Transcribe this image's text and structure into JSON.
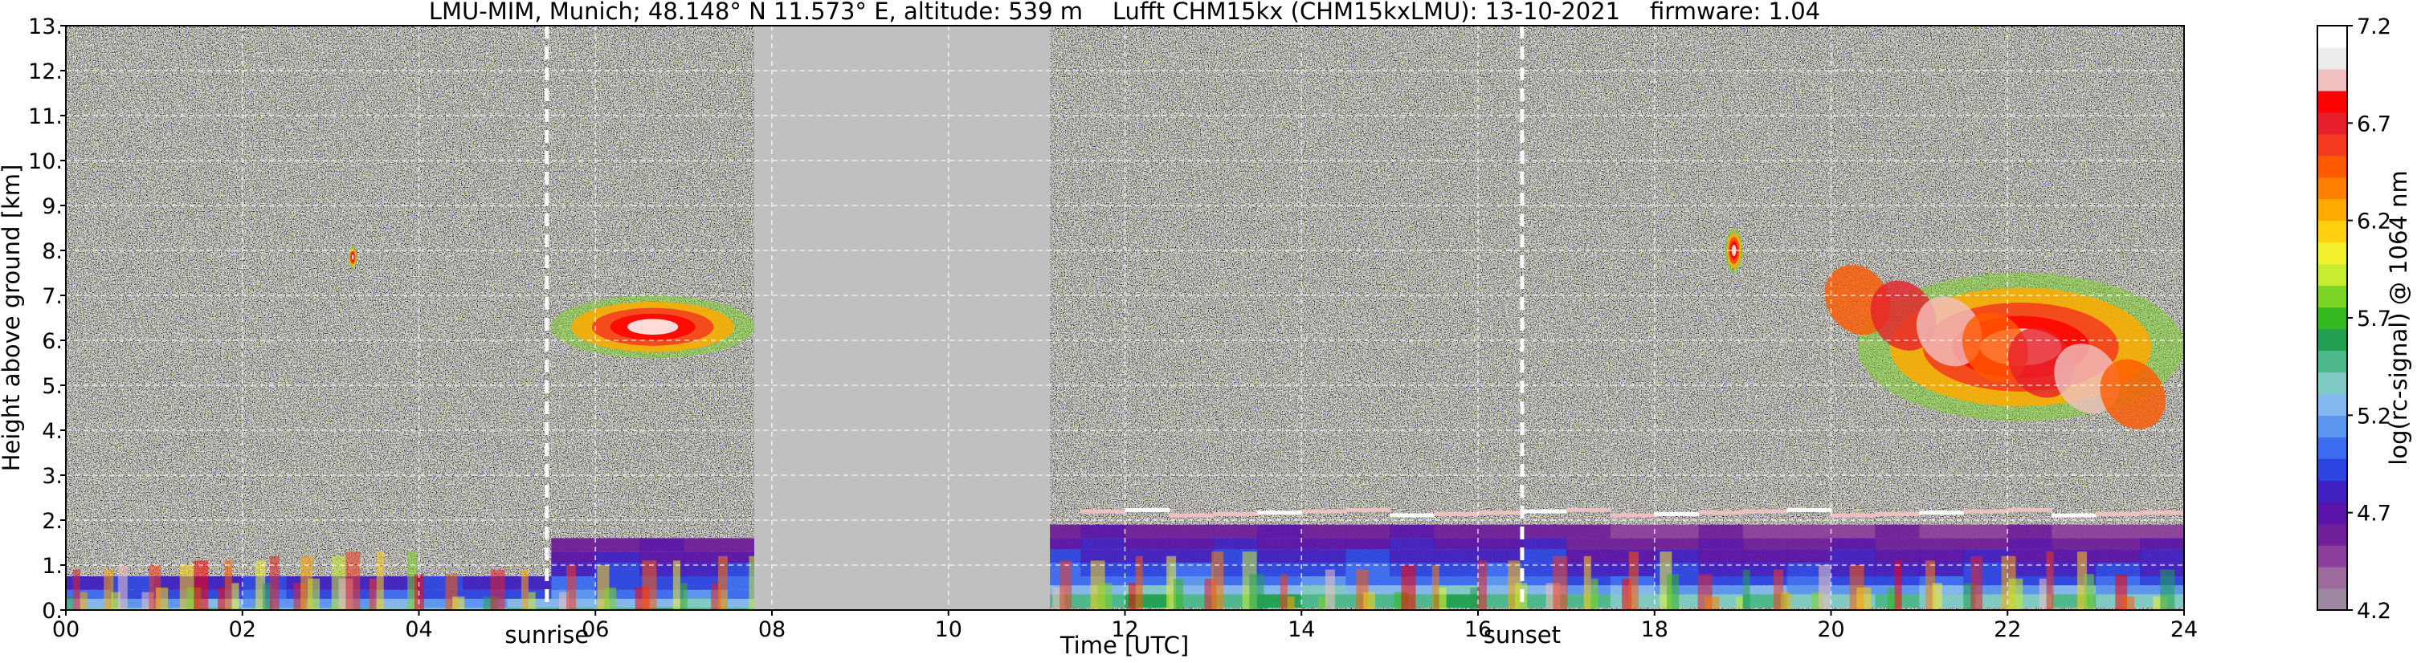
{
  "chart_data": {
    "type": "heatmap",
    "title": "LMU-MIM, Munich; 48.148° N 11.573° E, altitude: 539 m    Lufft CHM15kx (CHM15kxLMU): 13-10-2021    firmware: 1.04",
    "xlabel": "Time [UTC]",
    "ylabel": "Height above ground [km]",
    "xlim": [
      0,
      24
    ],
    "ylim": [
      0,
      13
    ],
    "x_ticks": [
      "00",
      "02",
      "04",
      "06",
      "08",
      "10",
      "12",
      "14",
      "16",
      "18",
      "20",
      "22",
      "24"
    ],
    "y_ticks": [
      "0.",
      "1.",
      "2.",
      "3.",
      "4.",
      "5.",
      "6.",
      "7.",
      "8.",
      "9.",
      "10.",
      "11.",
      "12.",
      "13."
    ],
    "grid": true,
    "background_colors": {
      "noise": "#1a1830",
      "no_data": "#c0c0c0"
    },
    "no_data_interval": [
      7.8,
      11.15
    ],
    "events": [
      {
        "label": "sunrise",
        "x": 5.45
      },
      {
        "label": "sunset",
        "x": 16.5
      }
    ],
    "colorbar": {
      "label": "log(rc-signal) @ 1064 nm",
      "range": [
        4.2,
        7.2
      ],
      "tick_labels": [
        "4.2",
        "4.7",
        "5.2",
        "5.7",
        "6.2",
        "6.7",
        "7.2"
      ],
      "colors": [
        "#9e8aa0",
        "#9c6a9c",
        "#8c3f9a",
        "#6f1f98",
        "#5a14a8",
        "#4020c0",
        "#2c44e0",
        "#3b6cf0",
        "#5a96f0",
        "#83b8ee",
        "#7fcac4",
        "#4cb88c",
        "#20a050",
        "#33b81e",
        "#7cd424",
        "#c8ec30",
        "#f4f230",
        "#ffd010",
        "#ffaa00",
        "#ff8000",
        "#ff5a00",
        "#f43a20",
        "#e6202a",
        "#ff0000",
        "#f0c0c0",
        "#ececec",
        "#ffffff"
      ]
    },
    "features": [
      {
        "name": "boundary layer aerosol",
        "x": [
          0,
          24
        ],
        "y": [
          0,
          2.2
        ]
      },
      {
        "name": "cloud ~8 km",
        "x": [
          3.2,
          3.3
        ],
        "y": [
          7.6,
          8.1
        ]
      },
      {
        "name": "cirrus ~6.3 km",
        "x": [
          5.5,
          7.8
        ],
        "y": [
          5.6,
          7.0
        ]
      },
      {
        "name": "cloud ~8 km (evening)",
        "x": [
          18.8,
          19.0
        ],
        "y": [
          7.5,
          8.5
        ]
      },
      {
        "name": "cirrus 4.5-7.5 km",
        "x": [
          20.3,
          24
        ],
        "y": [
          4.2,
          7.5
        ]
      }
    ]
  }
}
